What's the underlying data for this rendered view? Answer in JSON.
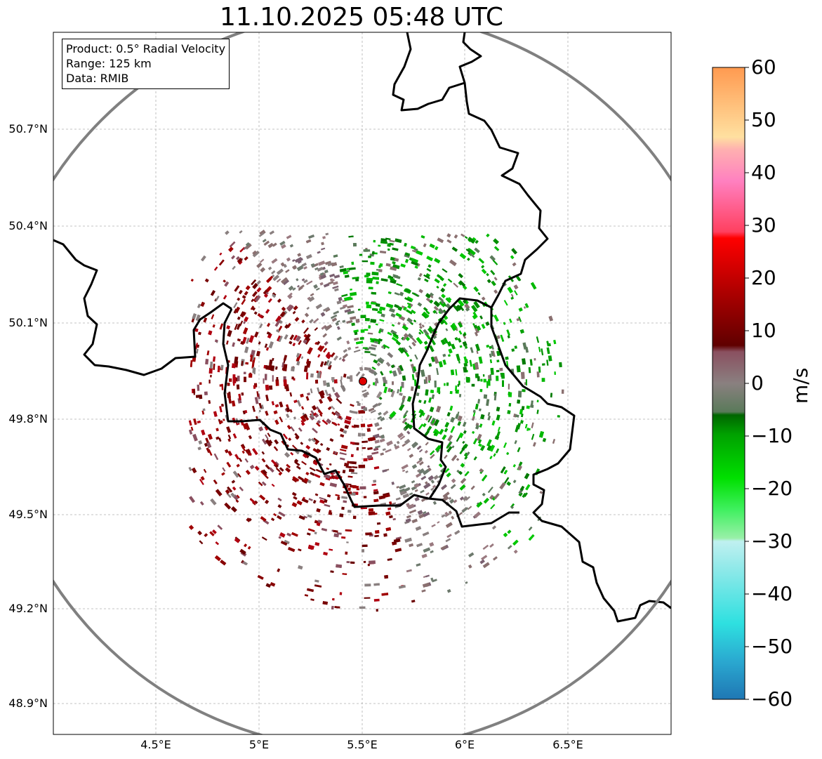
{
  "title": "11.10.2025 05:48 UTC",
  "info": {
    "product": "Product: 0.5° Radial Velocity",
    "range": "Range: 125 km",
    "data": "Data: RMIB"
  },
  "lat_labels": [
    "50.7°N",
    "50.4°N",
    "50.1°N",
    "49.8°N",
    "49.5°N",
    "49.2°N",
    "48.9°N"
  ],
  "lon_labels": [
    "4.5°E",
    "5°E",
    "5.5°E",
    "6°E",
    "6.5°E"
  ],
  "colorbar": {
    "unit": "m/s",
    "ticks": [
      "60",
      "50",
      "40",
      "30",
      "20",
      "10",
      "0",
      "−10",
      "−20",
      "−30",
      "−40",
      "−50",
      "−60"
    ],
    "min": -60,
    "max": 60
  },
  "map_extent": {
    "lon": [
      4.0,
      7.0
    ],
    "lat": [
      48.8,
      50.98
    ]
  },
  "radar_site": {
    "lon": 5.505,
    "lat": 49.915
  },
  "colors": {
    "range_ring": "#808080",
    "border": "#000000",
    "grid": "#b0b0b0",
    "site_marker": "#e00000"
  }
}
